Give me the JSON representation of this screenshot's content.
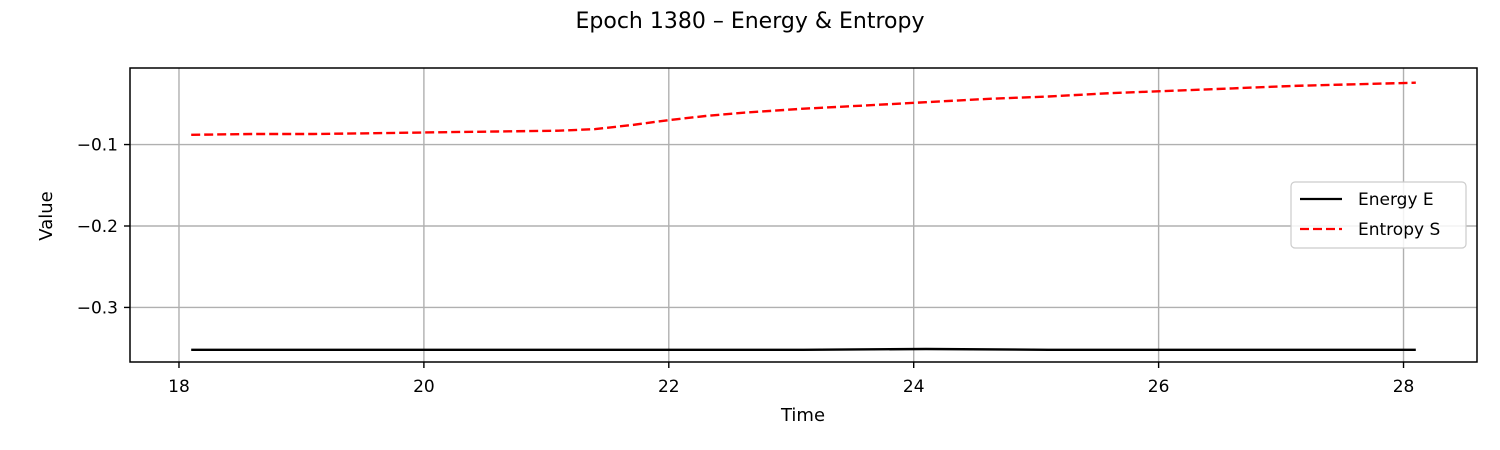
{
  "chart_data": {
    "type": "line",
    "title": "Epoch 1380 – Energy & Entropy",
    "xlabel": "Time",
    "ylabel": "Value",
    "xlim": [
      17.6,
      28.6
    ],
    "ylim": [
      -0.367,
      -0.006
    ],
    "xticks": [
      18,
      20,
      22,
      24,
      26,
      28
    ],
    "xtick_labels": [
      "18",
      "20",
      "22",
      "24",
      "26",
      "28"
    ],
    "yticks": [
      -0.1,
      -0.2,
      -0.3
    ],
    "ytick_labels": [
      "−0.1",
      "−0.2",
      "−0.3"
    ],
    "grid": true,
    "legend_position": "center-right",
    "series": [
      {
        "name": "Energy E",
        "color": "#000000",
        "style": "solid",
        "x": [
          18.1,
          19.1,
          20.1,
          21.1,
          22.1,
          23.1,
          24.1,
          25.1,
          26.1,
          27.1,
          28.1
        ],
        "y": [
          -0.352,
          -0.352,
          -0.352,
          -0.352,
          -0.352,
          -0.352,
          -0.351,
          -0.352,
          -0.352,
          -0.352,
          -0.352
        ]
      },
      {
        "name": "Entropy S",
        "color": "#ff0000",
        "style": "dashed",
        "x": [
          18.1,
          18.6,
          19.1,
          19.6,
          20.1,
          20.6,
          21.1,
          21.4,
          21.7,
          22.0,
          22.3,
          22.6,
          23.1,
          23.6,
          24.1,
          24.6,
          25.1,
          25.6,
          26.1,
          26.6,
          27.1,
          27.6,
          28.1
        ],
        "y": [
          -0.088,
          -0.087,
          -0.087,
          -0.086,
          -0.085,
          -0.084,
          -0.083,
          -0.081,
          -0.076,
          -0.07,
          -0.065,
          -0.061,
          -0.056,
          -0.052,
          -0.048,
          -0.044,
          -0.041,
          -0.037,
          -0.034,
          -0.031,
          -0.028,
          -0.026,
          -0.024
        ]
      }
    ]
  }
}
